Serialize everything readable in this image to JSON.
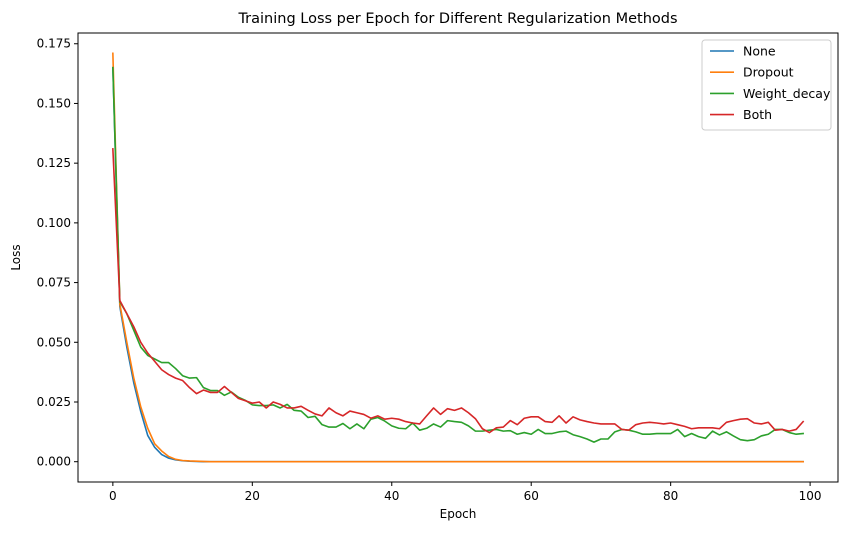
{
  "chart_data": {
    "type": "line",
    "title": "Training Loss per Epoch for Different Regularization Methods",
    "xlabel": "Epoch",
    "ylabel": "Loss",
    "xlim": [
      -5,
      104
    ],
    "ylim": [
      -0.0085,
      0.1795
    ],
    "x_ticks": [
      0,
      20,
      40,
      60,
      80,
      100
    ],
    "x_tick_labels": [
      "0",
      "20",
      "40",
      "60",
      "80",
      "100"
    ],
    "y_ticks": [
      0.0,
      0.025,
      0.05,
      0.075,
      0.1,
      0.125,
      0.15,
      0.175
    ],
    "y_tick_labels": [
      "0.000",
      "0.025",
      "0.050",
      "0.075",
      "0.100",
      "0.125",
      "0.150",
      "0.175"
    ],
    "grid": false,
    "legend_position": "upper right",
    "x": [
      0,
      1,
      2,
      3,
      4,
      5,
      6,
      7,
      8,
      9,
      10,
      11,
      12,
      13,
      14,
      15,
      16,
      17,
      18,
      19,
      20,
      21,
      22,
      23,
      24,
      25,
      26,
      27,
      28,
      29,
      30,
      31,
      32,
      33,
      34,
      35,
      36,
      37,
      38,
      39,
      40,
      41,
      42,
      43,
      44,
      45,
      46,
      47,
      48,
      49,
      50,
      51,
      52,
      53,
      54,
      55,
      56,
      57,
      58,
      59,
      60,
      61,
      62,
      63,
      64,
      65,
      66,
      67,
      68,
      69,
      70,
      71,
      72,
      73,
      74,
      75,
      76,
      77,
      78,
      79,
      80,
      81,
      82,
      83,
      84,
      85,
      86,
      87,
      88,
      89,
      90,
      91,
      92,
      93,
      94,
      95,
      96,
      97,
      98,
      99
    ],
    "series": [
      {
        "name": "None",
        "color": "#1f77b4",
        "values": [
          0.165,
          0.065,
          0.048,
          0.033,
          0.021,
          0.011,
          0.006,
          0.003,
          0.0015,
          0.0008,
          0.0004,
          0.0002,
          0.0001,
          0,
          0,
          0,
          0,
          0,
          0,
          0,
          0,
          0,
          0,
          0,
          0,
          0,
          0,
          0,
          0,
          0,
          0,
          0,
          0,
          0,
          0,
          0,
          0,
          0,
          0,
          0,
          0,
          0,
          0,
          0,
          0,
          0,
          0,
          0,
          0,
          0,
          0,
          0,
          0,
          0,
          0,
          0,
          0,
          0,
          0,
          0,
          0,
          0,
          0,
          0,
          0,
          0,
          0,
          0,
          0,
          0,
          0,
          0,
          0,
          0,
          0,
          0,
          0,
          0,
          0,
          0,
          0,
          0,
          0,
          0,
          0,
          0,
          0,
          0,
          0,
          0,
          0,
          0,
          0,
          0,
          0,
          0,
          0,
          0,
          0,
          0
        ]
      },
      {
        "name": "Dropout",
        "color": "#ff7f0e",
        "values": [
          0.171,
          0.066,
          0.05,
          0.035,
          0.023,
          0.014,
          0.0075,
          0.0045,
          0.0022,
          0.001,
          0.0005,
          0.0003,
          0.0002,
          0.0001,
          0,
          0,
          0,
          0,
          0,
          0,
          0,
          0,
          0,
          0,
          0,
          0,
          0,
          0,
          0,
          0,
          0,
          0,
          0,
          0,
          0,
          0,
          0,
          0,
          0,
          0,
          0,
          0,
          0,
          0,
          0,
          0,
          0,
          0,
          0,
          0,
          0,
          0,
          0,
          0,
          0,
          0,
          0,
          0,
          0,
          0,
          0,
          0,
          0,
          0,
          0,
          0,
          0,
          0,
          0,
          0,
          0,
          0,
          0,
          0,
          0,
          0,
          0,
          0,
          0,
          0,
          0,
          0,
          0,
          0,
          0,
          0,
          0,
          0,
          0,
          0,
          0,
          0,
          0,
          0,
          0,
          0,
          0,
          0,
          0,
          0
        ]
      },
      {
        "name": "Weight_decay",
        "color": "#2ca02c",
        "values": [
          0.165,
          0.067,
          0.062,
          0.055,
          0.048,
          0.0445,
          0.043,
          0.0415,
          0.0415,
          0.039,
          0.036,
          0.035,
          0.0352,
          0.031,
          0.0298,
          0.0298,
          0.0278,
          0.0292,
          0.027,
          0.0257,
          0.0238,
          0.0235,
          0.0235,
          0.0238,
          0.0225,
          0.024,
          0.0215,
          0.0212,
          0.0185,
          0.019,
          0.0155,
          0.0145,
          0.0145,
          0.016,
          0.0138,
          0.0158,
          0.0138,
          0.0178,
          0.0185,
          0.017,
          0.015,
          0.014,
          0.0138,
          0.0162,
          0.0132,
          0.014,
          0.0158,
          0.0145,
          0.0172,
          0.0168,
          0.0165,
          0.015,
          0.0128,
          0.0128,
          0.0132,
          0.0135,
          0.0128,
          0.013,
          0.0115,
          0.0122,
          0.0115,
          0.0135,
          0.0118,
          0.0118,
          0.0125,
          0.0128,
          0.0113,
          0.0105,
          0.0095,
          0.0082,
          0.0095,
          0.0095,
          0.0125,
          0.0135,
          0.0132,
          0.0125,
          0.0115,
          0.0115,
          0.0118,
          0.0118,
          0.0118,
          0.0135,
          0.0105,
          0.0118,
          0.0105,
          0.0098,
          0.0128,
          0.0112,
          0.0125,
          0.0108,
          0.0092,
          0.0088,
          0.0092,
          0.0108,
          0.0115,
          0.0135,
          0.0135,
          0.0122,
          0.0115,
          0.0118
        ]
      },
      {
        "name": "Both",
        "color": "#d62728",
        "values": [
          0.131,
          0.0675,
          0.062,
          0.0565,
          0.05,
          0.0455,
          0.042,
          0.0385,
          0.0365,
          0.035,
          0.034,
          0.031,
          0.0285,
          0.03,
          0.029,
          0.029,
          0.0315,
          0.029,
          0.0265,
          0.0255,
          0.0245,
          0.025,
          0.0225,
          0.025,
          0.024,
          0.0225,
          0.0225,
          0.0232,
          0.0215,
          0.02,
          0.0192,
          0.0225,
          0.0205,
          0.0192,
          0.0212,
          0.0205,
          0.0198,
          0.0182,
          0.0192,
          0.0178,
          0.0182,
          0.0178,
          0.0168,
          0.0162,
          0.0158,
          0.0192,
          0.0225,
          0.0198,
          0.0222,
          0.0215,
          0.0225,
          0.0205,
          0.018,
          0.0138,
          0.0122,
          0.0142,
          0.0145,
          0.0172,
          0.0155,
          0.0182,
          0.0188,
          0.0188,
          0.0168,
          0.0165,
          0.0192,
          0.0162,
          0.0188,
          0.0175,
          0.0168,
          0.0162,
          0.0158,
          0.0158,
          0.0158,
          0.0135,
          0.0132,
          0.0155,
          0.0162,
          0.0165,
          0.0162,
          0.0158,
          0.0162,
          0.0155,
          0.0148,
          0.0138,
          0.0142,
          0.0142,
          0.0142,
          0.0138,
          0.0165,
          0.0172,
          0.0178,
          0.018,
          0.0162,
          0.0158,
          0.0165,
          0.0132,
          0.0135,
          0.0128,
          0.0135,
          0.0168
        ]
      }
    ]
  }
}
